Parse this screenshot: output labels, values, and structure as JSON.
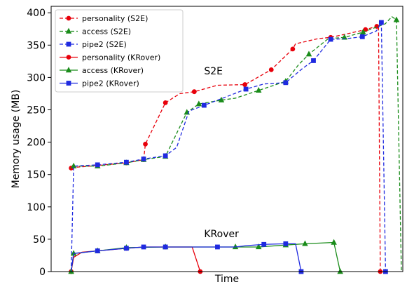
{
  "chart_data": {
    "type": "line",
    "xlabel": "Time",
    "ylabel": "Memory usage (MB)",
    "ylim": [
      0,
      410
    ],
    "xlim": [
      0,
      100
    ],
    "yticks": [
      0,
      50,
      100,
      150,
      200,
      250,
      300,
      350,
      400
    ],
    "x_ticks_labeled": false,
    "grid": false,
    "legend_position": "upper-left",
    "annotations": [
      {
        "text": "S2E",
        "x": 43.5,
        "y": 305
      },
      {
        "text": "KRover",
        "x": 43.5,
        "y": 53
      }
    ],
    "series": [
      {
        "name": "personality (S2E)",
        "color": "#e8000b",
        "linestyle": "dashed",
        "marker": "circle",
        "x": [
          5.7,
          6.4,
          13.2,
          21.4,
          26.3,
          26.8,
          32.5,
          36.6,
          40.7,
          47.3,
          55.1,
          62.6,
          68.7,
          69.5,
          75.9,
          79.5,
          84.6,
          89.4,
          92.6,
          93.1,
          93.6
        ],
        "y": [
          160,
          161,
          164,
          168,
          173,
          197,
          261,
          275,
          278,
          288,
          289,
          312,
          344,
          352,
          360,
          362,
          368,
          374,
          379,
          380,
          0
        ],
        "markers": [
          1,
          0,
          1,
          1,
          1,
          1,
          1,
          0,
          1,
          0,
          1,
          1,
          1,
          0,
          0,
          1,
          0,
          1,
          1,
          0,
          1
        ]
      },
      {
        "name": "access (S2E)",
        "color": "#1a8c1a",
        "linestyle": "dashed",
        "marker": "triangle",
        "x": [
          6.4,
          13.2,
          21.4,
          26.3,
          32.5,
          38.6,
          42.0,
          48.4,
          52.4,
          59.0,
          66.7,
          70.4,
          73.3,
          78.8,
          83.4,
          88.7,
          95.0,
          96.9,
          98.2,
          99.6
        ],
        "y": [
          163,
          163,
          168,
          173,
          178,
          246,
          259,
          265,
          268,
          280,
          294,
          320,
          336,
          360,
          362,
          370,
          383,
          394,
          389,
          0
        ],
        "markers": [
          1,
          1,
          1,
          1,
          1,
          1,
          1,
          1,
          0,
          1,
          1,
          0,
          1,
          0,
          1,
          1,
          0,
          0,
          1,
          0
        ]
      },
      {
        "name": "pipe2 (S2E)",
        "color": "#1f2ae0",
        "linestyle": "dashed",
        "marker": "square",
        "x": [
          5.7,
          6.4,
          13.2,
          21.4,
          26.3,
          32.5,
          35.7,
          39.2,
          43.5,
          48.8,
          55.4,
          60.5,
          66.7,
          71.5,
          74.6,
          79.5,
          84.0,
          88.5,
          92.5,
          93.9,
          95.1
        ],
        "y": [
          0,
          163,
          165,
          169,
          174,
          179,
          192,
          248,
          257,
          268,
          282,
          290,
          292,
          314,
          326,
          359,
          360,
          363,
          372,
          385,
          0
        ],
        "markers": [
          0,
          0,
          1,
          1,
          1,
          1,
          0,
          0,
          1,
          0,
          1,
          0,
          1,
          0,
          1,
          1,
          0,
          1,
          0,
          1,
          1
        ]
      },
      {
        "name": "personality (KRover)",
        "color": "#e8000b",
        "linestyle": "solid",
        "marker": "circle",
        "x": [
          5.7,
          6.4,
          8.8,
          13.2,
          21.4,
          26.3,
          32.5,
          40.1,
          42.4
        ],
        "y": [
          0,
          22,
          30,
          32,
          36,
          38,
          38,
          38,
          0
        ],
        "markers": [
          1,
          0,
          0,
          1,
          1,
          0,
          1,
          0,
          1
        ]
      },
      {
        "name": "access (KRover)",
        "color": "#1a8c1a",
        "linestyle": "solid",
        "marker": "triangle",
        "x": [
          5.7,
          6.4,
          13.2,
          21.4,
          32.5,
          41.7,
          52.4,
          59.0,
          66.7,
          72.2,
          80.4,
          82.2
        ],
        "y": [
          0,
          28,
          32,
          37,
          38,
          38,
          38,
          38,
          41,
          43,
          45,
          0
        ],
        "markers": [
          1,
          1,
          1,
          1,
          1,
          0,
          1,
          1,
          1,
          1,
          1,
          1
        ]
      },
      {
        "name": "pipe2 (KRover)",
        "color": "#1f2ae0",
        "linestyle": "solid",
        "marker": "square",
        "x": [
          5.7,
          6.4,
          13.2,
          21.4,
          26.3,
          32.5,
          40.7,
          47.3,
          52.4,
          55.4,
          60.5,
          66.7,
          69.5,
          71.1
        ],
        "y": [
          0,
          28,
          32,
          36,
          38,
          38,
          38,
          38,
          38,
          40,
          42,
          43,
          43,
          0
        ],
        "markers": [
          0,
          0,
          1,
          1,
          1,
          1,
          0,
          1,
          0,
          0,
          1,
          1,
          0,
          1
        ]
      }
    ]
  }
}
